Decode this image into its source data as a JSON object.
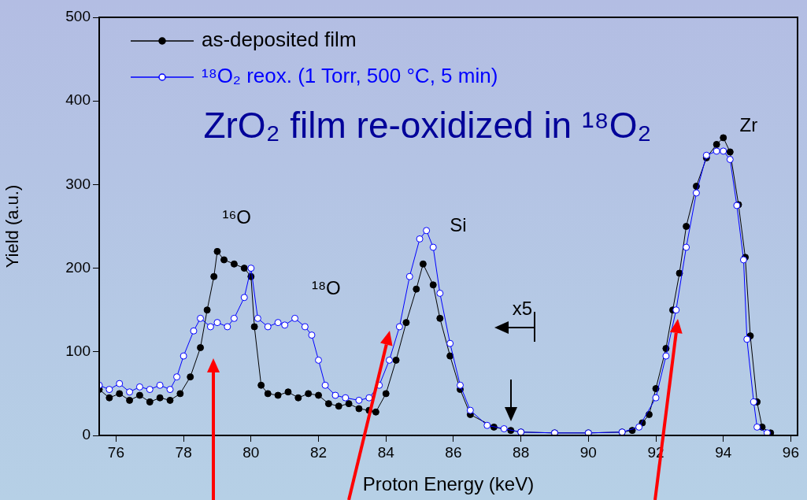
{
  "chart_data": {
    "type": "line",
    "title": "ZrO₂ film re-oxidized in ¹⁸O₂",
    "xlabel": "Proton Energy (keV)",
    "ylabel": "Yield (a.u.)",
    "xlim": [
      75.5,
      96.2
    ],
    "xticks": [
      76,
      78,
      80,
      82,
      84,
      86,
      88,
      90,
      92,
      94,
      96
    ],
    "ylim": [
      0,
      500
    ],
    "yticks": [
      0,
      100,
      200,
      300,
      400,
      500
    ],
    "grid": false,
    "legend": "top left",
    "marker": "circle",
    "line_style": "solid",
    "annotations": [
      "¹⁶O",
      "¹⁸O",
      "Si",
      "Zr",
      "x5"
    ],
    "series": [
      {
        "name": "as-deposited film",
        "color": "#000000",
        "x": [
          75.5,
          75.8,
          76.1,
          76.4,
          76.7,
          77.0,
          77.3,
          77.6,
          77.9,
          78.2,
          78.5,
          78.7,
          78.9,
          79.0,
          79.2,
          79.5,
          79.8,
          80.0,
          80.1,
          80.3,
          80.5,
          80.8,
          81.1,
          81.4,
          81.7,
          82.0,
          82.3,
          82.6,
          82.9,
          83.2,
          83.5,
          83.7,
          84.0,
          84.3,
          84.6,
          84.9,
          85.1,
          85.4,
          85.6,
          85.9,
          86.2,
          86.5,
          87.2,
          87.7,
          88.0,
          89.0,
          90.0,
          91.0,
          91.3,
          91.6,
          91.8,
          92.0,
          92.3,
          92.5,
          92.7,
          92.9,
          93.2,
          93.5,
          93.8,
          94.0,
          94.2,
          94.45,
          94.65,
          94.8,
          95.0,
          95.15,
          95.4
        ],
        "values": [
          55,
          45,
          50,
          42,
          48,
          40,
          45,
          42,
          50,
          70,
          105,
          150,
          190,
          220,
          210,
          205,
          200,
          190,
          130,
          60,
          50,
          48,
          52,
          45,
          50,
          48,
          38,
          35,
          38,
          32,
          30,
          28,
          50,
          90,
          135,
          175,
          205,
          180,
          140,
          95,
          55,
          25,
          10,
          6,
          4,
          3,
          3,
          4,
          6,
          15,
          25,
          56,
          104,
          150,
          194,
          250,
          298,
          332,
          348,
          356,
          339,
          276,
          213,
          119,
          40,
          10,
          3
        ]
      },
      {
        "name": "¹⁸O₂ reox. (1 Torr, 500 °C, 5 min)",
        "color": "#0000ff",
        "x": [
          75.5,
          75.8,
          76.1,
          76.4,
          76.7,
          77.0,
          77.3,
          77.6,
          77.8,
          78.0,
          78.3,
          78.5,
          78.8,
          79.0,
          79.3,
          79.5,
          79.8,
          80.0,
          80.2,
          80.5,
          80.8,
          81.0,
          81.3,
          81.6,
          81.8,
          82.0,
          82.2,
          82.5,
          82.8,
          83.2,
          83.5,
          83.8,
          84.1,
          84.4,
          84.7,
          85.0,
          85.2,
          85.4,
          85.6,
          85.9,
          86.2,
          86.5,
          87.0,
          87.5,
          88.0,
          89.0,
          90.0,
          91.0,
          91.5,
          92.0,
          92.3,
          92.6,
          92.9,
          93.2,
          93.5,
          93.8,
          94.0,
          94.2,
          94.4,
          94.6,
          94.7,
          94.9,
          95.0,
          95.3
        ],
        "values": [
          60,
          55,
          62,
          52,
          58,
          55,
          60,
          55,
          70,
          95,
          125,
          140,
          130,
          135,
          130,
          140,
          165,
          200,
          140,
          130,
          135,
          132,
          140,
          130,
          120,
          90,
          60,
          48,
          45,
          42,
          45,
          60,
          90,
          130,
          190,
          235,
          245,
          225,
          170,
          110,
          60,
          30,
          12,
          8,
          4,
          3,
          3,
          4,
          10,
          45,
          95,
          150,
          225,
          290,
          335,
          340,
          340,
          330,
          275,
          210,
          115,
          40,
          10,
          3
        ]
      }
    ]
  }
}
